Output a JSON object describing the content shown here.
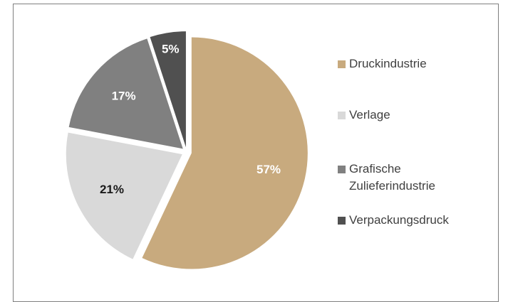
{
  "chart_data": {
    "type": "pie",
    "categories": [
      "Druckindustrie",
      "Verlage",
      "Grafische Zulieferindustrie",
      "Verpackungsdruck"
    ],
    "values": [
      57,
      21,
      17,
      5
    ],
    "value_labels": [
      "57%",
      "21%",
      "17%",
      "5%"
    ],
    "colors": [
      "#c8aa7e",
      "#d9d9d9",
      "#808080",
      "#505050"
    ],
    "label_colors": [
      "#ffffff",
      "#1a1a1a",
      "#ffffff",
      "#ffffff"
    ]
  }
}
